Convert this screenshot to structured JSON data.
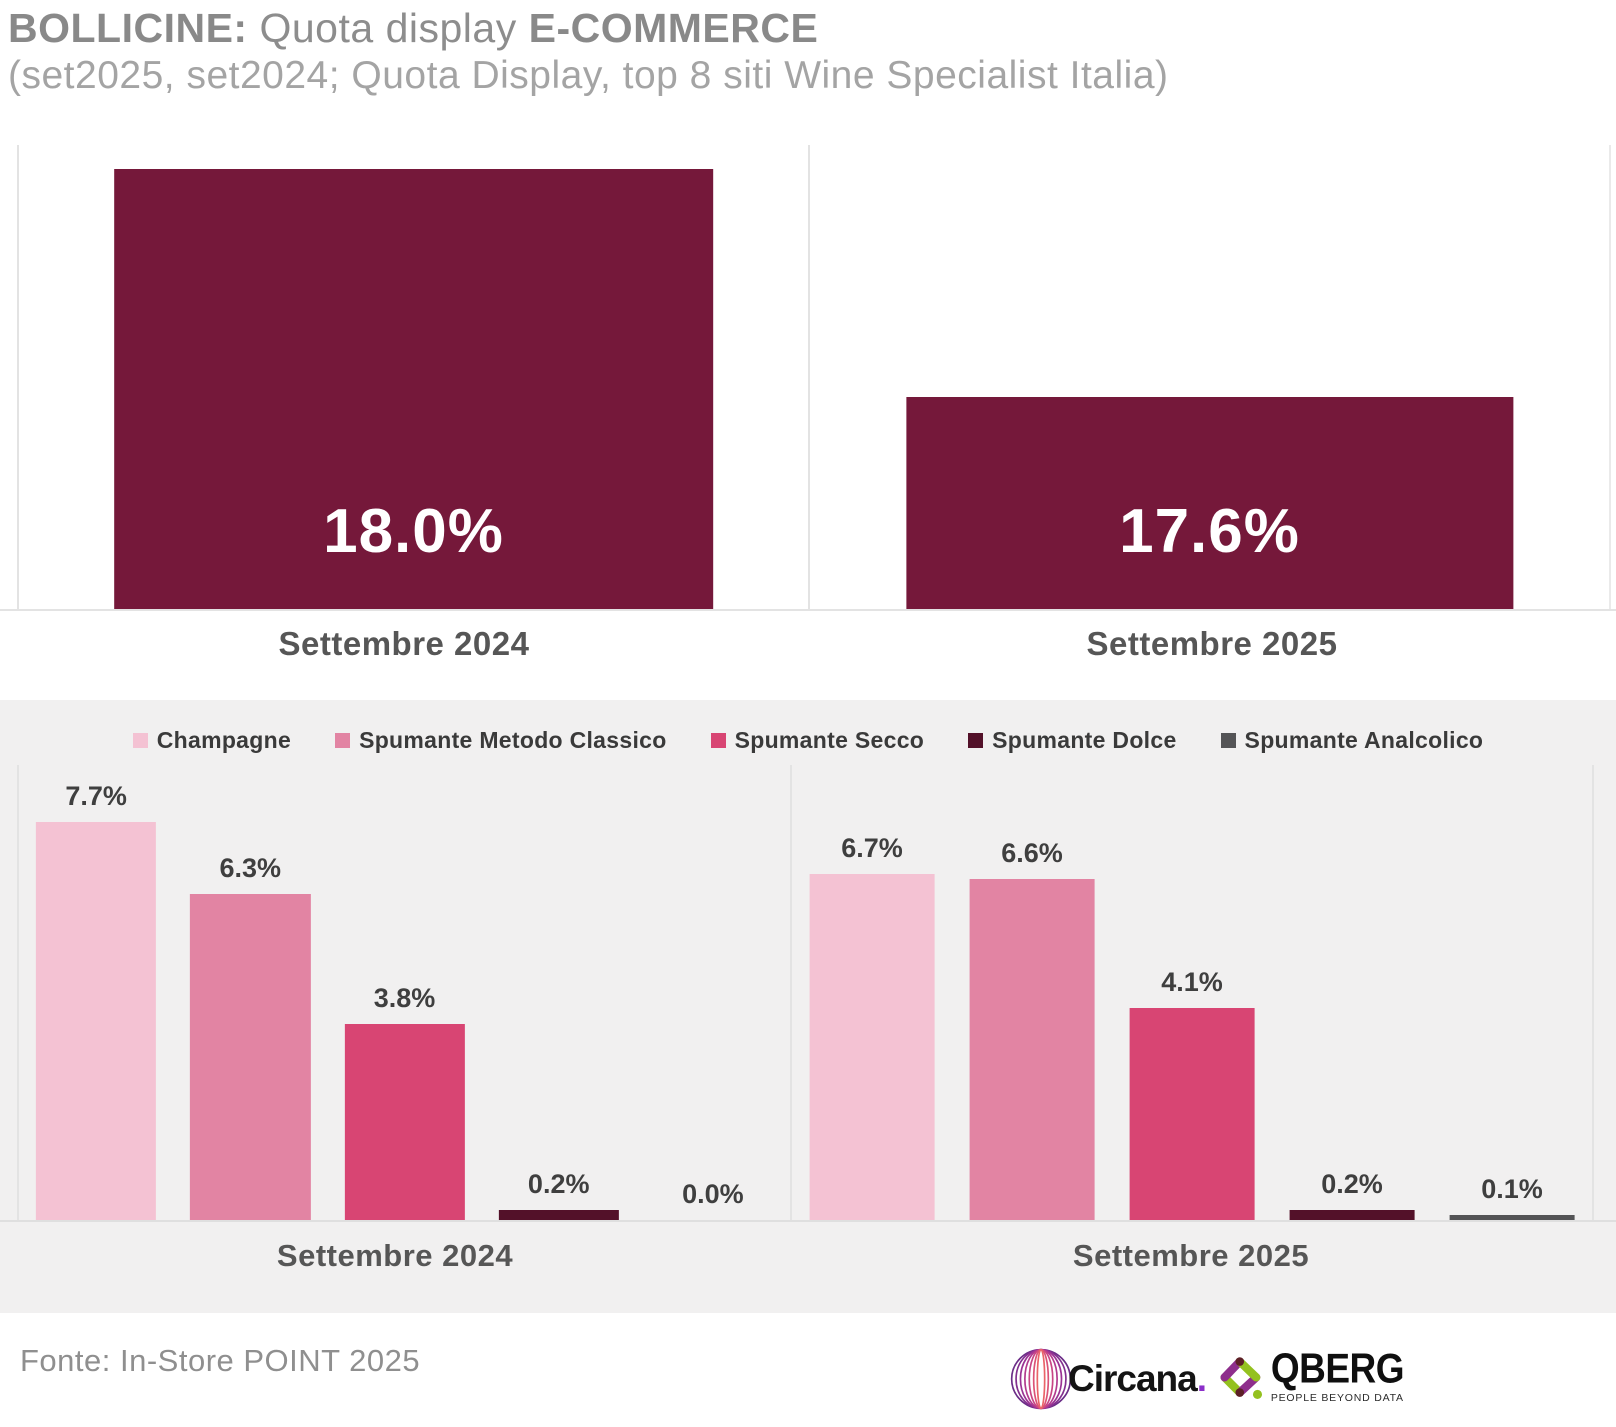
{
  "header": {
    "title_bold_1": "BOLLICINE:",
    "title_mid": " Quota display ",
    "title_bold_2": "E-COMMERCE",
    "subtitle": "(set2025, set2024; Quota Display, top 8 siti Wine Specialist Italia)"
  },
  "chart_data": [
    {
      "type": "bar",
      "categories": [
        "Settembre 2024",
        "Settembre 2025"
      ],
      "values": [
        18.0,
        17.6
      ],
      "value_labels": [
        "18.0%",
        "17.6%"
      ],
      "bar_color": "#75183A",
      "grid": false,
      "panel_axis_max": [
        19.0,
        38.5
      ],
      "value_label_position": "inside-bottom"
    },
    {
      "type": "bar",
      "categories": [
        "Settembre 2024",
        "Settembre 2025"
      ],
      "ylim": [
        0,
        8.8
      ],
      "grid": false,
      "legend_position": "top",
      "background": "#F1F0F0",
      "series": [
        {
          "name": "Champagne",
          "color": "#F4C2D3",
          "values": [
            7.7,
            6.7
          ],
          "labels": [
            "7.7%",
            "6.7%"
          ]
        },
        {
          "name": "Spumante Metodo Classico",
          "color": "#E284A3",
          "values": [
            6.3,
            6.6
          ],
          "labels": [
            "6.3%",
            "6.6%"
          ]
        },
        {
          "name": "Spumante Secco",
          "color": "#D84573",
          "values": [
            3.8,
            4.1
          ],
          "labels": [
            "3.8%",
            "4.1%"
          ]
        },
        {
          "name": "Spumante Dolce",
          "color": "#531129",
          "values": [
            0.2,
            0.2
          ],
          "labels": [
            "0.2%",
            "0.2%"
          ]
        },
        {
          "name": "Spumante Analcolico",
          "color": "#545456",
          "values": [
            0.0,
            0.1
          ],
          "labels": [
            "0.0%",
            "0.1%"
          ]
        }
      ]
    }
  ],
  "footer": {
    "source": "Fonte: In-Store POINT 2025",
    "logos": {
      "circana": {
        "text": "Circana",
        "dot": "."
      },
      "qberg": {
        "text": "QBERG",
        "tagline": "PEOPLE BEYOND DATA"
      }
    }
  }
}
